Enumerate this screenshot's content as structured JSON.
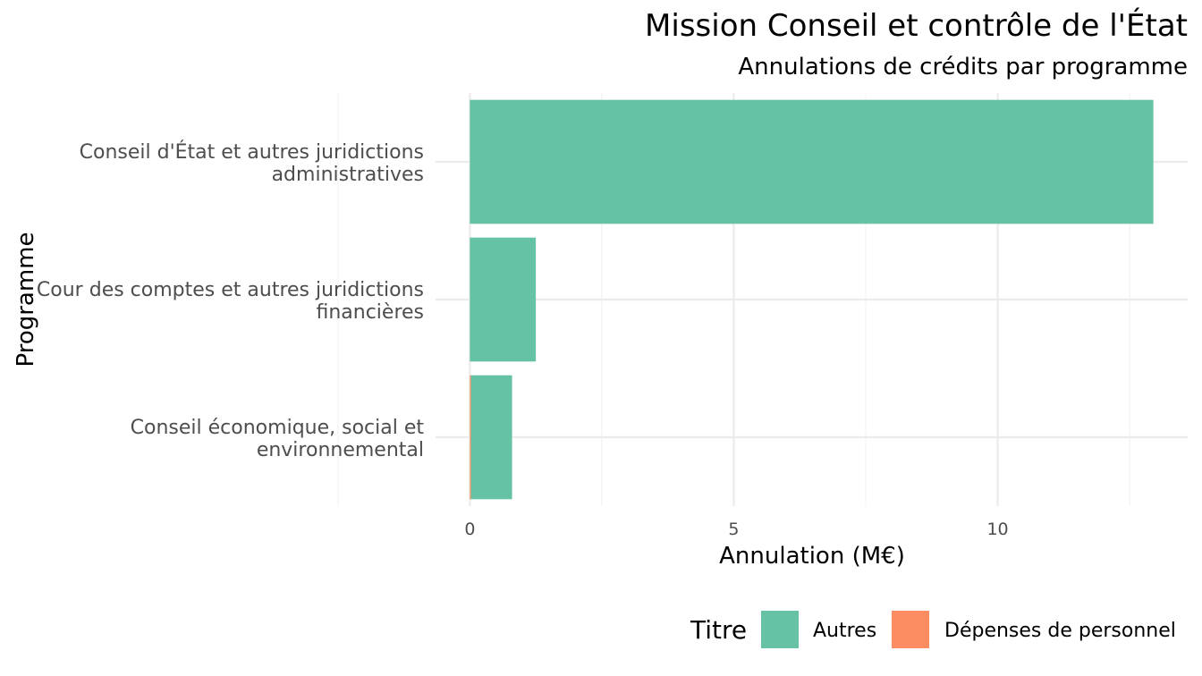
{
  "colors": {
    "autres": "#66c2a5",
    "personnel": "#fc8d62",
    "grid_major": "#ebebeb",
    "grid_minor": "#f3f3f3"
  },
  "chart_data": {
    "type": "bar",
    "orientation": "horizontal",
    "stacked": true,
    "title": "Mission Conseil et contrôle de l'État",
    "subtitle": "Annulations de crédits par programme",
    "xlabel": "Annulation (M€)",
    "ylabel": "Programme",
    "categories": [
      [
        "Conseil d'État et autres juridictions",
        "administratives"
      ],
      [
        "Cour des comptes et autres juridictions",
        "financières"
      ],
      [
        "Conseil économique, social et",
        "environnemental"
      ]
    ],
    "series": [
      {
        "name": "Autres",
        "values": [
          12.95,
          1.25,
          0.78
        ],
        "color": "#66c2a5"
      },
      {
        "name": "Dépenses de personnel",
        "values": [
          0.0,
          0.0,
          0.02
        ],
        "color": "#fc8d62"
      }
    ],
    "xlim": [
      -0.65,
      13.6
    ],
    "x_ticks": [
      0,
      5,
      10
    ],
    "x_minor": [
      -2.5,
      2.5,
      7.5,
      12.5
    ],
    "grid": true,
    "legend": {
      "title": "Titre",
      "position": "bottom-right"
    }
  }
}
